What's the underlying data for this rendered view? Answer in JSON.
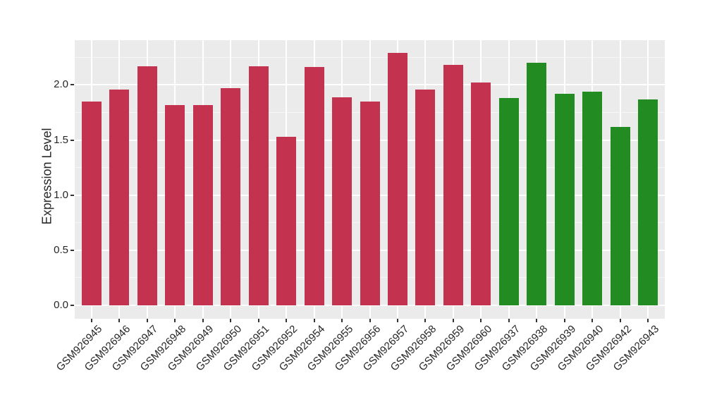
{
  "figure": {
    "background": "#FFFFFF",
    "panel_background": "#EBEBEB",
    "grid_major_color": "#FFFFFF",
    "grid_minor_color": "#F6F6F6",
    "tick_mark_color": "#333333",
    "axis_text_color": "#262626"
  },
  "chart_data": {
    "type": "bar",
    "title": "",
    "xlabel": "",
    "ylabel": "Expression Level",
    "categories": [
      "GSM926945",
      "GSM926946",
      "GSM926947",
      "GSM926948",
      "GSM926949",
      "GSM926950",
      "GSM926951",
      "GSM926952",
      "GSM926954",
      "GSM926955",
      "GSM926956",
      "GSM926957",
      "GSM926958",
      "GSM926959",
      "GSM926960",
      "GSM926937",
      "GSM926938",
      "GSM926939",
      "GSM926940",
      "GSM926942",
      "GSM926943"
    ],
    "values": [
      1.85,
      1.96,
      2.17,
      1.82,
      1.82,
      1.97,
      2.17,
      1.53,
      2.16,
      1.89,
      1.85,
      2.29,
      1.96,
      2.18,
      2.02,
      1.88,
      2.2,
      1.92,
      1.94,
      1.62,
      1.87
    ],
    "groups": [
      "red",
      "red",
      "red",
      "red",
      "red",
      "red",
      "red",
      "red",
      "red",
      "red",
      "red",
      "red",
      "red",
      "red",
      "red",
      "green",
      "green",
      "green",
      "green",
      "green",
      "green"
    ],
    "group_colors": {
      "red": "#C3324E",
      "green": "#228B22"
    },
    "ytick_labels": [
      "0.0",
      "0.5",
      "1.0",
      "1.5",
      "2.0"
    ],
    "ytick_values": [
      0.0,
      0.5,
      1.0,
      1.5,
      2.0
    ],
    "ytick_minor_values": [
      0.25,
      0.75,
      1.25,
      1.75,
      2.25
    ],
    "ylim": [
      -0.122,
      2.406
    ],
    "grid": true,
    "legend_position": "none"
  }
}
